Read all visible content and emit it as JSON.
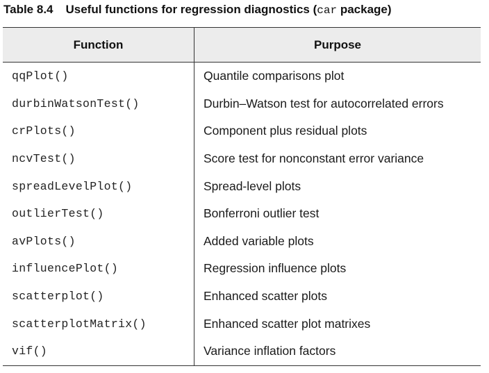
{
  "caption": {
    "number": "Table 8.4",
    "title_pre": "Useful functions for regression diagnostics (",
    "title_code": "car",
    "title_post": " package)"
  },
  "headers": {
    "function": "Function",
    "purpose": "Purpose"
  },
  "rows": [
    {
      "function": "qqPlot()",
      "purpose": "Quantile comparisons plot"
    },
    {
      "function": "durbinWatsonTest()",
      "purpose": "Durbin–Watson test for autocorrelated errors"
    },
    {
      "function": "crPlots()",
      "purpose": "Component plus residual plots"
    },
    {
      "function": "ncvTest()",
      "purpose": "Score test for nonconstant error variance"
    },
    {
      "function": "spreadLevelPlot()",
      "purpose": "Spread-level plots"
    },
    {
      "function": "outlierTest()",
      "purpose": "Bonferroni outlier test"
    },
    {
      "function": "avPlots()",
      "purpose": "Added variable plots"
    },
    {
      "function": "influencePlot()",
      "purpose": "Regression influence plots"
    },
    {
      "function": "scatterplot()",
      "purpose": "Enhanced scatter plots"
    },
    {
      "function": "scatterplotMatrix()",
      "purpose": "Enhanced scatter plot matrixes"
    },
    {
      "function": "vif()",
      "purpose": "Variance inflation factors"
    }
  ]
}
